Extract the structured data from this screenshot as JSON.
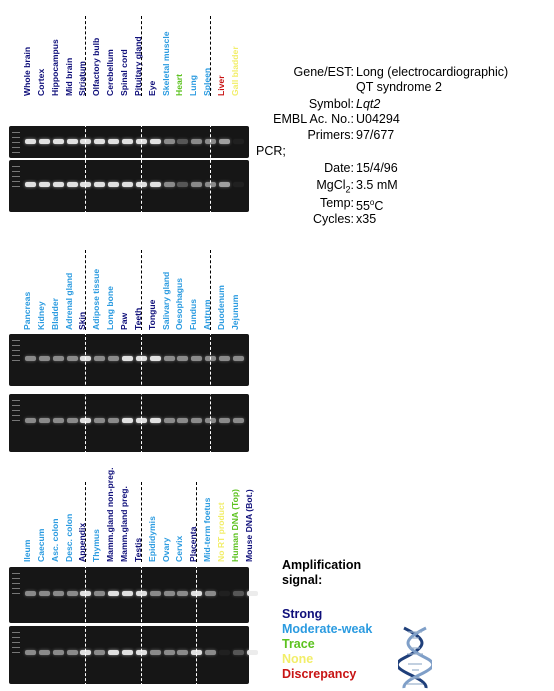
{
  "info": {
    "gene_label": "Gene/EST:",
    "gene_value_1": "Long (electrocardiographic)",
    "gene_value_2": "QT syndrome 2",
    "symbol_label": "Symbol:",
    "symbol_value": "Lqt2",
    "embl_label": "EMBL Ac. No.:",
    "embl_value": "U04294",
    "primers_label": "Primers:",
    "primers_value": "97/677",
    "pcr_label": "PCR;",
    "date_label": "Date:",
    "date_value": "15/4/96",
    "mgcl_label_main": "MgCl",
    "mgcl_label_sub": "2",
    "mgcl_label_colon": ":",
    "mgcl_value": "3.5 mM",
    "temp_label": "Temp:",
    "temp_value_num": "55",
    "temp_value_sup": "o",
    "temp_value_unit": "C",
    "cycles_label": "Cycles:",
    "cycles_value": "x35"
  },
  "legend": {
    "title_1": "Amplification",
    "title_2": "signal:",
    "items": [
      {
        "label": "Strong",
        "color": "#0f0f7a"
      },
      {
        "label": "Moderate-weak",
        "color": "#2b9be0"
      },
      {
        "label": "Trace",
        "color": "#5cc21f"
      },
      {
        "label": "None",
        "color": "#f2ee6a"
      },
      {
        "label": "Discrepancy",
        "color": "#c81414"
      }
    ]
  },
  "panels": [
    {
      "lanes": [
        {
          "label": "Whole brain",
          "signal": "Strong",
          "color": "#0f0f7a"
        },
        {
          "label": "Cortex",
          "signal": "Strong",
          "color": "#0f0f7a"
        },
        {
          "label": "Hippocampus",
          "signal": "Strong",
          "color": "#0f0f7a"
        },
        {
          "label": "Mid brain",
          "signal": "Strong",
          "color": "#0f0f7a"
        },
        {
          "label": "Striatum",
          "signal": "Strong",
          "color": "#0f0f7a"
        },
        {
          "label": "Olfactory bulb",
          "signal": "Strong",
          "color": "#0f0f7a"
        },
        {
          "label": "Cerebellum",
          "signal": "Strong",
          "color": "#0f0f7a"
        },
        {
          "label": "Spinal cord",
          "signal": "Strong",
          "color": "#0f0f7a"
        },
        {
          "label": "Pituitary gland",
          "signal": "Strong",
          "color": "#0f0f7a"
        },
        {
          "label": "Eye",
          "signal": "Strong",
          "color": "#0f0f7a"
        },
        {
          "label": "Skeletal muscle",
          "signal": "Moderate-weak",
          "color": "#2b9be0"
        },
        {
          "label": "Heart",
          "signal": "Trace",
          "color": "#5cc21f"
        },
        {
          "label": "Lung",
          "signal": "Moderate-weak",
          "color": "#2b9be0"
        },
        {
          "label": "Spleen",
          "signal": "Moderate-weak",
          "color": "#2b9be0"
        },
        {
          "label": "Liver",
          "signal": "Discrepancy",
          "color": "#c81414"
        },
        {
          "label": "Gall bladder",
          "signal": "None",
          "color": "#f2ee6a"
        }
      ]
    },
    {
      "lanes": [
        {
          "label": "Pancreas",
          "signal": "Moderate-weak",
          "color": "#2b9be0"
        },
        {
          "label": "Kidney",
          "signal": "Moderate-weak",
          "color": "#2b9be0"
        },
        {
          "label": "Bladder",
          "signal": "Moderate-weak",
          "color": "#2b9be0"
        },
        {
          "label": "Adrenal gland",
          "signal": "Moderate-weak",
          "color": "#2b9be0"
        },
        {
          "label": "Skin",
          "signal": "Strong",
          "color": "#0f0f7a"
        },
        {
          "label": "Adipose tissue",
          "signal": "Moderate-weak",
          "color": "#2b9be0"
        },
        {
          "label": "Long bone",
          "signal": "Moderate-weak",
          "color": "#2b9be0"
        },
        {
          "label": "Paw",
          "signal": "Strong",
          "color": "#0f0f7a"
        },
        {
          "label": "Teeth",
          "signal": "Strong",
          "color": "#0f0f7a"
        },
        {
          "label": "Tongue",
          "signal": "Strong",
          "color": "#0f0f7a"
        },
        {
          "label": "Salivary gland",
          "signal": "Moderate-weak",
          "color": "#2b9be0"
        },
        {
          "label": "Oesophagus",
          "signal": "Moderate-weak",
          "color": "#2b9be0"
        },
        {
          "label": "Fundus",
          "signal": "Moderate-weak",
          "color": "#2b9be0"
        },
        {
          "label": "Antrum",
          "signal": "Moderate-weak",
          "color": "#2b9be0"
        },
        {
          "label": "Duodenum",
          "signal": "Moderate-weak",
          "color": "#2b9be0"
        },
        {
          "label": "Jejunum",
          "signal": "Moderate-weak",
          "color": "#2b9be0"
        }
      ]
    },
    {
      "lanes": [
        {
          "label": "Ileum",
          "signal": "Moderate-weak",
          "color": "#2b9be0"
        },
        {
          "label": "Caecum",
          "signal": "Moderate-weak",
          "color": "#2b9be0"
        },
        {
          "label": "Asc. colon",
          "signal": "Moderate-weak",
          "color": "#2b9be0"
        },
        {
          "label": "Desc. colon",
          "signal": "Moderate-weak",
          "color": "#2b9be0"
        },
        {
          "label": "Appendix",
          "signal": "Strong",
          "color": "#0f0f7a"
        },
        {
          "label": "Thymus",
          "signal": "Moderate-weak",
          "color": "#2b9be0"
        },
        {
          "label": "Mamm.gland non-preg.",
          "signal": "Strong",
          "color": "#0f0f7a"
        },
        {
          "label": "Mamm.gland preg.",
          "signal": "Strong",
          "color": "#0f0f7a"
        },
        {
          "label": "Testis",
          "signal": "Strong",
          "color": "#0f0f7a"
        },
        {
          "label": "Epididymis",
          "signal": "Moderate-weak",
          "color": "#2b9be0"
        },
        {
          "label": "Ovary",
          "signal": "Moderate-weak",
          "color": "#2b9be0"
        },
        {
          "label": "Cervix",
          "signal": "Moderate-weak",
          "color": "#2b9be0"
        },
        {
          "label": "Placenta",
          "signal": "Strong",
          "color": "#0f0f7a"
        },
        {
          "label": "Mid-term foetus",
          "signal": "Moderate-weak",
          "color": "#2b9be0"
        },
        {
          "label": "No RT product",
          "signal": "None",
          "color": "#f2ee6a"
        },
        {
          "label": "Human DNA (Top)",
          "signal": "Trace",
          "color": "#5cc21f"
        },
        {
          "label": "Mouse DNA (Bot.)",
          "signal": "Strong",
          "color": "#0f0f7a"
        }
      ]
    }
  ]
}
